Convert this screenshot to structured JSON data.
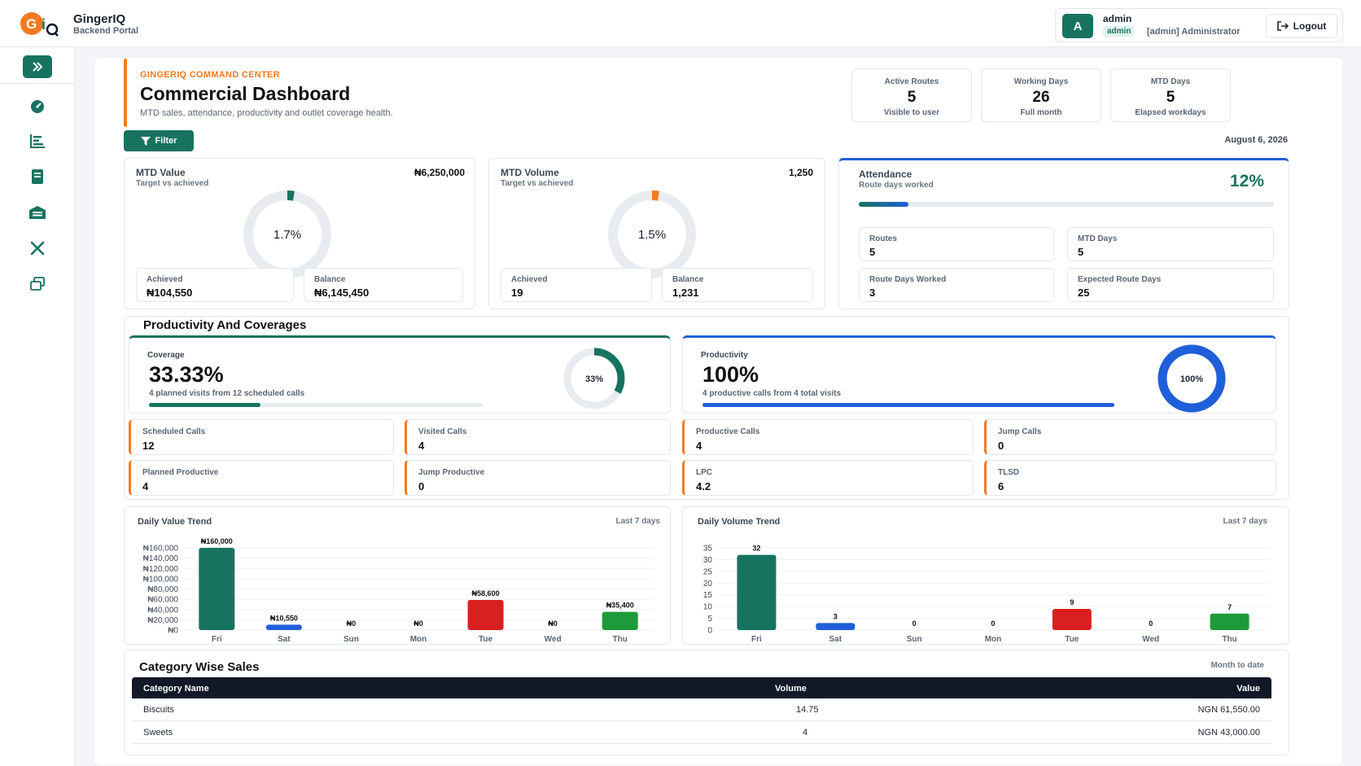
{
  "brand": {
    "name": "GingerIQ",
    "subtitle": "Backend Portal"
  },
  "user": {
    "initial": "A",
    "name": "admin",
    "role_chip": "admin",
    "role": "[admin] Administrator",
    "logout_label": "Logout"
  },
  "header": {
    "kicker": "GINGERIQ COMMAND CENTER",
    "title": "Commercial Dashboard",
    "subtitle": "MTD sales, attendance, productivity and outlet coverage health.",
    "filter_label": "Filter",
    "date": "August 6, 2026"
  },
  "stats": [
    {
      "label": "Active Routes",
      "value": "5",
      "sub": "Visible to user"
    },
    {
      "label": "Working Days",
      "value": "26",
      "sub": "Full month"
    },
    {
      "label": "MTD Days",
      "value": "5",
      "sub": "Elapsed workdays"
    }
  ],
  "mtd_value": {
    "label": "MTD Value",
    "sub": "Target vs achieved",
    "target": "₦6,250,000",
    "percent_label": "1.7%",
    "percent": 1.7,
    "achieved_label": "Achieved",
    "achieved": "₦104,550",
    "balance_label": "Balance",
    "balance": "₦6,145,450",
    "color": "#17735f"
  },
  "mtd_volume": {
    "label": "MTD Volume",
    "sub": "Target vs achieved",
    "target": "1,250",
    "percent_label": "1.5%",
    "percent": 1.5,
    "achieved_label": "Achieved",
    "achieved": "19",
    "balance_label": "Balance",
    "balance": "1,231",
    "color": "#f47a20"
  },
  "attendance": {
    "label": "Attendance",
    "sub": "Route days worked",
    "percent_label": "12%",
    "percent": 12,
    "items": [
      {
        "label": "Routes",
        "value": "5"
      },
      {
        "label": "MTD Days",
        "value": "5"
      },
      {
        "label": "Route Days Worked",
        "value": "3"
      },
      {
        "label": "Expected Route Days",
        "value": "25"
      }
    ]
  },
  "productivity_section": {
    "title": "Productivity And Coverages",
    "coverage": {
      "label": "Coverage",
      "value": "33.33%",
      "sub": "4 planned visits from 12 scheduled calls",
      "ring_label": "33%",
      "percent": 33.33,
      "color": "#17735f"
    },
    "productivity": {
      "label": "Productivity",
      "value": "100%",
      "sub": "4 productive calls from 4 total visits",
      "ring_label": "100%",
      "percent": 100,
      "color": "#1f5fd9"
    },
    "boxes": [
      {
        "label": "Scheduled Calls",
        "value": "12"
      },
      {
        "label": "Visited Calls",
        "value": "4"
      },
      {
        "label": "Productive Calls",
        "value": "4"
      },
      {
        "label": "Jump Calls",
        "value": "0"
      },
      {
        "label": "Planned Productive",
        "value": "4"
      },
      {
        "label": "Jump Productive",
        "value": "0"
      },
      {
        "label": "LPC",
        "value": "4.2"
      },
      {
        "label": "TLSD",
        "value": "6"
      }
    ]
  },
  "chart_data": [
    {
      "type": "bar",
      "title": "Daily Value Trend",
      "subtitle": "Last 7 days",
      "categories": [
        "Fri",
        "Sat",
        "Sun",
        "Mon",
        "Tue",
        "Wed",
        "Thu"
      ],
      "values": [
        160000,
        10550,
        0,
        0,
        58600,
        0,
        35400
      ],
      "data_labels": [
        "₦160,000",
        "₦10,550",
        "₦0",
        "₦0",
        "₦58,600",
        "₦0",
        "₦35,400"
      ],
      "yticks": [
        "₦0",
        "₦20,000",
        "₦40,000",
        "₦60,000",
        "₦80,000",
        "₦100,000",
        "₦120,000",
        "₦140,000",
        "₦160,000"
      ],
      "ylim": [
        0,
        160000
      ],
      "colors": [
        "#17735f",
        "#1f5fd9",
        "#17735f",
        "#17735f",
        "#d92020",
        "#17735f",
        "#1f9a3a"
      ]
    },
    {
      "type": "bar",
      "title": "Daily Volume Trend",
      "subtitle": "Last 7 days",
      "categories": [
        "Fri",
        "Sat",
        "Sun",
        "Mon",
        "Tue",
        "Wed",
        "Thu"
      ],
      "values": [
        32,
        3,
        0,
        0,
        9,
        0,
        7
      ],
      "data_labels": [
        "32",
        "3",
        "0",
        "0",
        "9",
        "0",
        "7"
      ],
      "yticks": [
        "0",
        "5",
        "10",
        "15",
        "20",
        "25",
        "30",
        "35"
      ],
      "ylim": [
        0,
        35
      ],
      "colors": [
        "#17735f",
        "#1f5fd9",
        "#17735f",
        "#17735f",
        "#d92020",
        "#17735f",
        "#1f9a3a"
      ]
    }
  ],
  "category_sales": {
    "title": "Category Wise Sales",
    "subtitle": "Month to date",
    "columns": [
      "Category Name",
      "Volume",
      "Value"
    ],
    "rows": [
      {
        "name": "Biscuits",
        "volume": "14.75",
        "value": "NGN 61,550.00"
      },
      {
        "name": "Sweets",
        "volume": "4",
        "value": "NGN 43,000.00"
      }
    ]
  }
}
